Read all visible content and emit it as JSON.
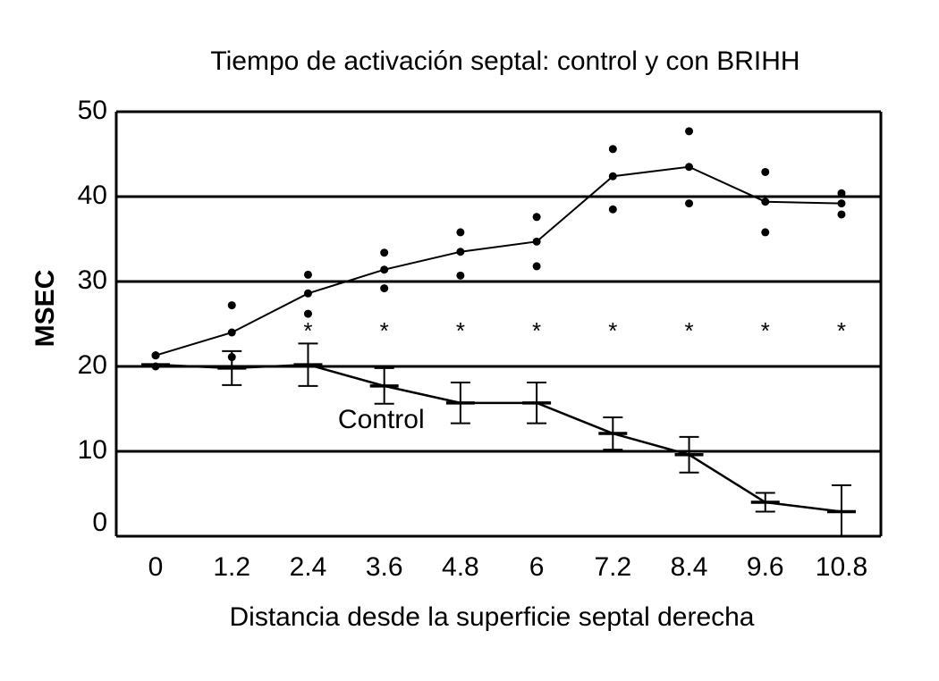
{
  "chart_data": {
    "type": "line",
    "title": "Tiempo de activación septal: control y con BRIHH",
    "xlabel": "Distancia desde la superficie septal derecha",
    "ylabel": "MSEC",
    "x": [
      0,
      1.2,
      2.4,
      3.6,
      4.8,
      6,
      7.2,
      8.4,
      9.6,
      10.8
    ],
    "xlim": [
      -0.62,
      11.42
    ],
    "xticks": [
      0,
      1.2,
      2.4,
      3.6,
      4.8,
      6,
      7.2,
      8.4,
      9.6,
      10.8
    ],
    "ylim": [
      0,
      50
    ],
    "yticks": [
      0,
      10,
      20,
      30,
      40,
      50
    ],
    "grid": true,
    "series": [
      {
        "color": "#000000",
        "values": [
          21.3,
          24.0,
          28.6,
          31.4,
          33.5,
          34.7,
          42.4,
          43.5,
          39.4,
          39.2
        ]
      },
      {
        "color": "#000000",
        "markers_only": true,
        "values": [
          21.3,
          27.2,
          30.8,
          33.4,
          35.8,
          37.6,
          45.6,
          47.7,
          42.9,
          40.4
        ]
      },
      {
        "color": "#000000",
        "markers_only": true,
        "values": [
          20.0,
          21.1,
          26.2,
          29.2,
          30.7,
          31.8,
          38.5,
          39.2,
          35.8,
          37.9
        ]
      },
      {
        "name": "Control",
        "color": "#000000",
        "values": [
          20.2,
          19.8,
          20.2,
          17.7,
          15.7,
          15.7,
          12.1,
          9.6,
          4.0,
          2.9
        ],
        "error": [
          null,
          2.0,
          2.5,
          2.1,
          2.4,
          2.4,
          1.9,
          2.1,
          1.1,
          3.1
        ]
      }
    ],
    "significance": [
      null,
      null,
      "*",
      "*",
      "*",
      "*",
      "*",
      "*",
      "*",
      "*"
    ]
  }
}
